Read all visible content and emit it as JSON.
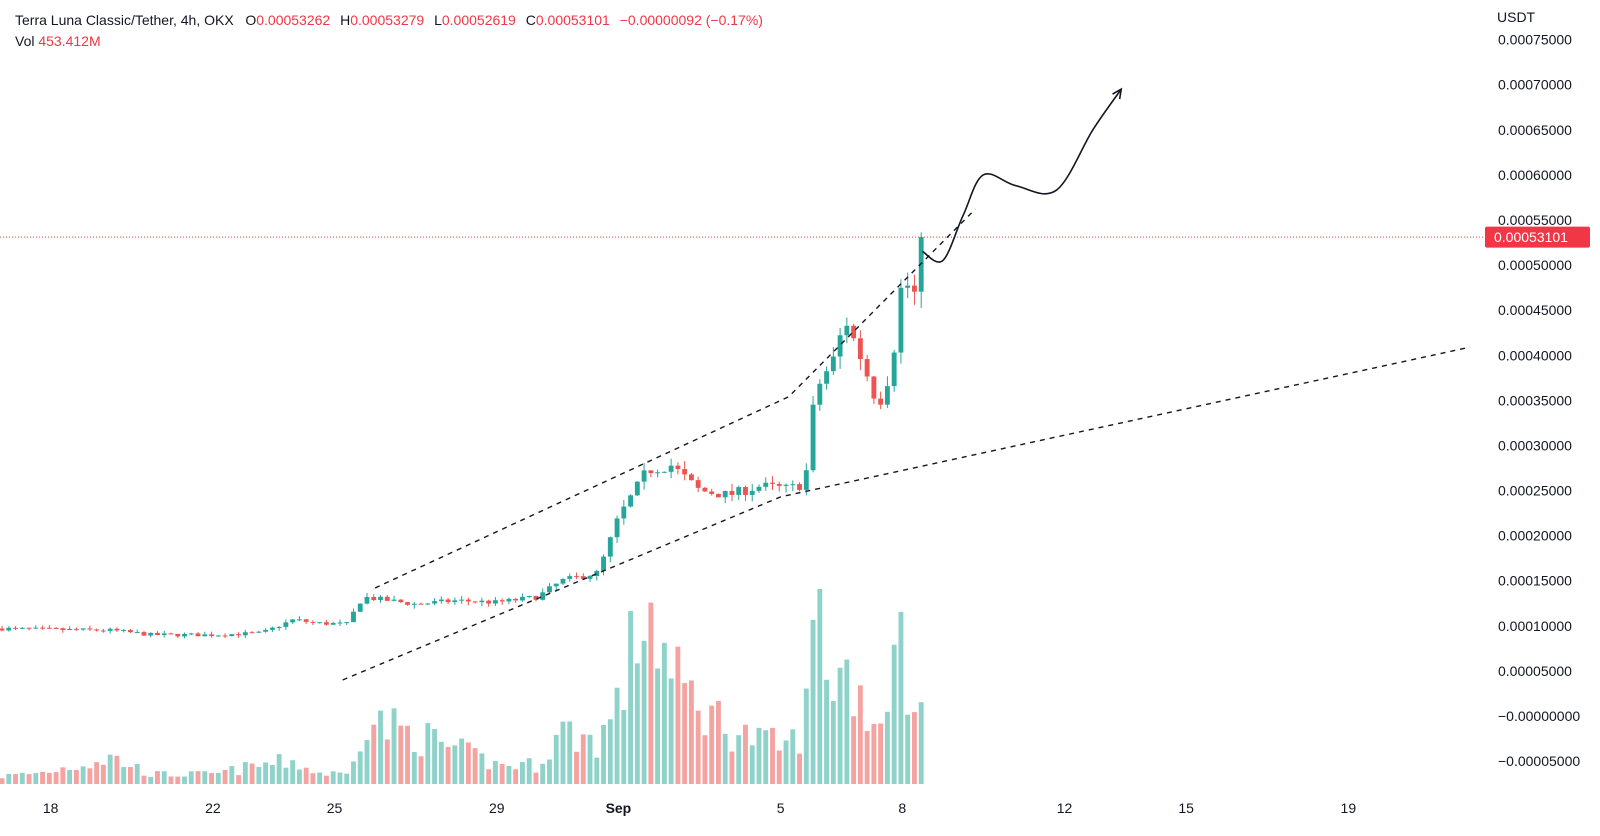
{
  "legend": {
    "symbol": "Terra Luna Classic/Tether, 4h, OKX",
    "o_label": "O",
    "o_value": "0.00053262",
    "h_label": "H",
    "h_value": "0.00053279",
    "l_label": "L",
    "l_value": "0.00052619",
    "c_label": "C",
    "c_value": "0.00053101",
    "change": "−0.00000092 (−0.17%)",
    "vol_label": "Vol",
    "vol_value": "453.412M"
  },
  "price_axis": {
    "unit": "USDT",
    "current_price_label": "0.00053101",
    "ticks": [
      "0.00075000",
      "0.00070000",
      "0.00065000",
      "0.00060000",
      "0.00055000",
      "0.00050000",
      "0.00045000",
      "0.00040000",
      "0.00035000",
      "0.00030000",
      "0.00025000",
      "0.00020000",
      "0.00015000",
      "0.00010000",
      "0.00005000",
      "−0.00000000",
      "−0.00005000"
    ]
  },
  "time_axis": {
    "ticks": [
      {
        "label": "18",
        "day": 18
      },
      {
        "label": "22",
        "day": 22
      },
      {
        "label": "25",
        "day": 25
      },
      {
        "label": "29",
        "day": 29
      },
      {
        "label": "Sep",
        "day": 32,
        "bold": true
      },
      {
        "label": "5",
        "day": 36
      },
      {
        "label": "8",
        "day": 39
      },
      {
        "label": "12",
        "day": 43
      },
      {
        "label": "15",
        "day": 46
      },
      {
        "label": "19",
        "day": 50
      }
    ]
  },
  "colors": {
    "up": "#26a69a",
    "down": "#ef5350",
    "vol_up": "#8fd2ca",
    "vol_down": "#f4a3a0",
    "price_line": "#f23645"
  },
  "chart_data": {
    "type": "candlestick",
    "title": "Terra Luna Classic/Tether, 4h, OKX",
    "x_unit": "days (Aug 17 = 17, Sep 1 = 32)",
    "y_unit": "USDT",
    "ylim": [
      -8.2e-05,
      0.000785
    ],
    "xlim": [
      16.75,
      53.0
    ],
    "last_close": 0.00053101,
    "anchors": [
      {
        "day": 16.8,
        "price": 9.7e-05,
        "vol": 0.04
      },
      {
        "day": 17.8,
        "price": 9.6e-05,
        "vol": 0.06
      },
      {
        "day": 19.5,
        "price": 9.5e-05,
        "vol": 0.14
      },
      {
        "day": 20.5,
        "price": 9e-05,
        "vol": 0.05
      },
      {
        "day": 22.0,
        "price": 9e-05,
        "vol": 0.05
      },
      {
        "day": 23.2,
        "price": 9.2e-05,
        "vol": 0.1
      },
      {
        "day": 24.0,
        "price": 0.000107,
        "vol": 0.12
      },
      {
        "day": 24.5,
        "price": 0.000103,
        "vol": 0.06
      },
      {
        "day": 25.3,
        "price": 0.000102,
        "vol": 0.05
      },
      {
        "day": 25.7,
        "price": 0.000132,
        "vol": 0.34
      },
      {
        "day": 27.0,
        "price": 0.000124,
        "vol": 0.26
      },
      {
        "day": 28.0,
        "price": 0.000128,
        "vol": 0.18
      },
      {
        "day": 29.0,
        "price": 0.000126,
        "vol": 0.1
      },
      {
        "day": 30.0,
        "price": 0.000132,
        "vol": 0.1
      },
      {
        "day": 30.6,
        "price": 0.00015,
        "vol": 0.28
      },
      {
        "day": 31.5,
        "price": 0.000159,
        "vol": 0.22
      },
      {
        "day": 32.0,
        "price": 0.00022,
        "vol": 0.42
      },
      {
        "day": 32.7,
        "price": 0.000272,
        "vol": 0.98
      },
      {
        "day": 33.3,
        "price": 0.000278,
        "vol": 0.55
      },
      {
        "day": 34.0,
        "price": 0.00025,
        "vol": 0.42
      },
      {
        "day": 34.7,
        "price": 0.000245,
        "vol": 0.3
      },
      {
        "day": 35.5,
        "price": 0.000255,
        "vol": 0.22
      },
      {
        "day": 36.2,
        "price": 0.000252,
        "vol": 0.2
      },
      {
        "day": 36.6,
        "price": 0.000258,
        "vol": 0.3
      },
      {
        "day": 36.85,
        "price": 0.00036,
        "vol": 0.95
      },
      {
        "day": 37.3,
        "price": 0.000395,
        "vol": 0.55
      },
      {
        "day": 37.6,
        "price": 0.00044,
        "vol": 0.6
      },
      {
        "day": 38.0,
        "price": 0.000395,
        "vol": 0.45
      },
      {
        "day": 38.4,
        "price": 0.000345,
        "vol": 0.32
      },
      {
        "day": 38.6,
        "price": 0.000365,
        "vol": 0.35
      },
      {
        "day": 38.8,
        "price": 0.00041,
        "vol": 0.98
      },
      {
        "day": 39.0,
        "price": 0.000485,
        "vol": 0.68
      },
      {
        "day": 39.35,
        "price": 0.000465,
        "vol": 0.3
      },
      {
        "day": 39.5,
        "price": 0.000532,
        "vol": 0.82
      }
    ],
    "trendlines": [
      {
        "name": "upper",
        "dashed": true,
        "points": [
          [
            26.0,
            0.000142
          ],
          [
            36.2,
            0.000354
          ],
          [
            40.8,
            0.000562
          ]
        ]
      },
      {
        "name": "lower",
        "dashed": true,
        "points": [
          [
            25.2,
            4e-05
          ],
          [
            36.0,
            0.000243
          ],
          [
            53.0,
            0.000409
          ]
        ]
      }
    ],
    "projection": {
      "points": [
        [
          39.5,
          0.000515
        ],
        [
          40.0,
          0.000505
        ],
        [
          40.5,
          0.000555
        ],
        [
          41.0,
          0.0006
        ],
        [
          41.8,
          0.000588
        ],
        [
          42.8,
          0.000583
        ],
        [
          43.7,
          0.00065
        ],
        [
          44.4,
          0.000695
        ]
      ],
      "arrow": true
    }
  }
}
